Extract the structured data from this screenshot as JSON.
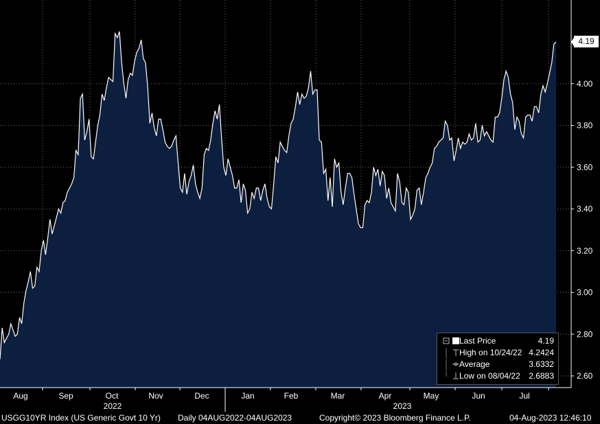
{
  "chart_data": {
    "type": "area",
    "ylim": [
      2.55,
      4.35
    ],
    "y_ticks": [
      "4.00",
      "3.80",
      "3.60",
      "3.40",
      "3.20",
      "3.00",
      "2.80",
      "2.60"
    ],
    "y_tick_values": [
      4.0,
      3.8,
      3.6,
      3.4,
      3.2,
      3.0,
      2.8,
      2.6
    ],
    "month_labels": [
      "Aug",
      "Sep",
      "Oct",
      "Nov",
      "Dec",
      "Jan",
      "Feb",
      "Mar",
      "Apr",
      "May",
      "Jun",
      "Jul"
    ],
    "year_labels": [
      "2022",
      "2023"
    ],
    "grid": true,
    "series": [
      {
        "values": [
          2.68,
          2.83,
          2.76,
          2.78,
          2.8,
          2.85,
          2.82,
          2.79,
          2.8,
          2.88,
          2.85,
          2.95,
          3.01,
          3.05,
          3.1,
          3.02,
          3.03,
          3.12,
          3.1,
          3.2,
          3.25,
          3.18,
          3.26,
          3.35,
          3.28,
          3.32,
          3.36,
          3.4,
          3.38,
          3.43,
          3.44,
          3.48,
          3.5,
          3.52,
          3.55,
          3.68,
          3.66,
          3.93,
          3.95,
          3.73,
          3.77,
          3.83,
          3.65,
          3.64,
          3.72,
          3.8,
          3.85,
          3.95,
          3.92,
          3.98,
          4.03,
          4.02,
          4.01,
          4.24,
          4.22,
          4.25,
          4.1,
          4.0,
          3.93,
          4.02,
          4.05,
          4.04,
          4.11,
          4.15,
          4.17,
          4.21,
          4.12,
          4.1,
          3.98,
          3.81,
          3.86,
          3.79,
          3.75,
          3.83,
          3.83,
          3.78,
          3.72,
          3.7,
          3.69,
          3.7,
          3.73,
          3.75,
          3.62,
          3.5,
          3.48,
          3.57,
          3.47,
          3.53,
          3.56,
          3.61,
          3.52,
          3.48,
          3.45,
          3.5,
          3.66,
          3.69,
          3.68,
          3.73,
          3.81,
          3.87,
          3.83,
          3.9,
          3.74,
          3.6,
          3.56,
          3.64,
          3.6,
          3.56,
          3.5,
          3.5,
          3.54,
          3.43,
          3.52,
          3.49,
          3.38,
          3.4,
          3.48,
          3.45,
          3.5,
          3.5,
          3.44,
          3.49,
          3.52,
          3.45,
          3.41,
          3.4,
          3.52,
          3.65,
          3.62,
          3.72,
          3.7,
          3.68,
          3.67,
          3.75,
          3.81,
          3.83,
          3.89,
          3.96,
          3.9,
          3.95,
          3.93,
          3.94,
          3.98,
          4.06,
          3.95,
          3.97,
          3.97,
          3.73,
          3.72,
          3.57,
          3.59,
          3.44,
          3.55,
          3.41,
          3.64,
          3.6,
          3.62,
          3.48,
          3.42,
          3.5,
          3.57,
          3.57,
          3.55,
          3.47,
          3.4,
          3.33,
          3.31,
          3.31,
          3.42,
          3.44,
          3.43,
          3.48,
          3.6,
          3.56,
          3.59,
          3.51,
          3.58,
          3.56,
          3.45,
          3.5,
          3.43,
          3.41,
          3.39,
          3.57,
          3.53,
          3.43,
          3.42,
          3.5,
          3.48,
          3.35,
          3.37,
          3.4,
          3.49,
          3.5,
          3.42,
          3.48,
          3.55,
          3.57,
          3.6,
          3.62,
          3.69,
          3.7,
          3.72,
          3.73,
          3.74,
          3.82,
          3.8,
          3.73,
          3.74,
          3.63,
          3.68,
          3.74,
          3.69,
          3.72,
          3.71,
          3.72,
          3.76,
          3.73,
          3.74,
          3.81,
          3.72,
          3.73,
          3.8,
          3.75,
          3.77,
          3.75,
          3.73,
          3.72,
          3.84,
          3.84,
          3.86,
          3.93,
          4.02,
          4.06,
          4.03,
          3.95,
          3.91,
          3.78,
          3.84,
          3.82,
          3.76,
          3.74,
          3.84,
          3.85,
          3.85,
          3.82,
          3.89,
          3.89,
          3.86,
          3.95,
          3.99,
          3.96,
          4.0,
          4.05,
          4.1,
          4.19,
          4.2
        ]
      }
    ],
    "last_value_label": "4.19"
  },
  "legend": {
    "last_price_label": "Last Price",
    "last_price_value": "4.19",
    "high_label": "High on 10/24/22",
    "high_value": "4.2424",
    "average_label": "Average",
    "average_value": "3.6332",
    "low_label": "Low on 08/04/22",
    "low_value": "2.6883"
  },
  "footer": {
    "security": "USGG10YR Index (US Generic Govt 10 Yr)",
    "range": "Daily 04AUG2022-04AUG2023",
    "copyright": "Copyright© 2023 Bloomberg Finance L.P.",
    "timestamp": "04-Aug-2023 12:46:10"
  },
  "colors": {
    "fill": "#0c1f3f",
    "line": "#ffffff",
    "grid": "#6e6e6e",
    "background": "#000000"
  }
}
